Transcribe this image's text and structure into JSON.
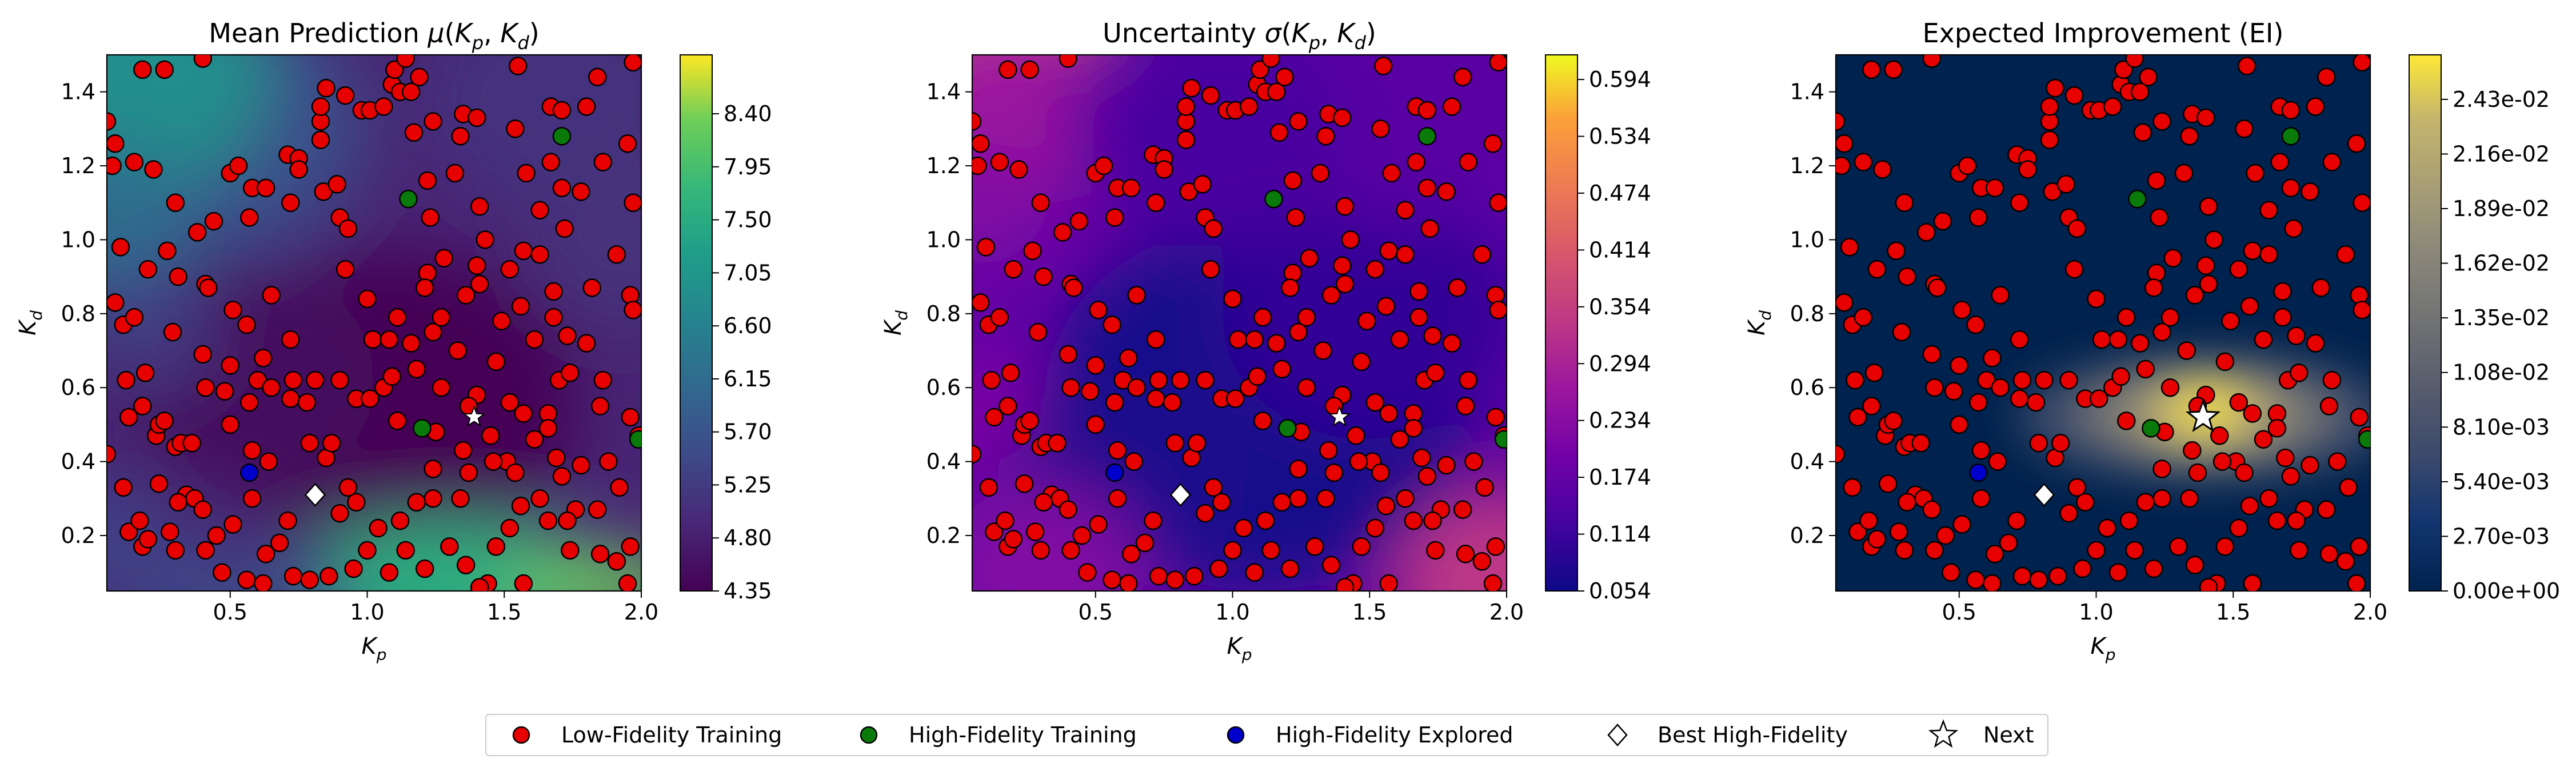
{
  "figure": {
    "legend": [
      {
        "label": "Low-Fidelity Training",
        "marker": "circle",
        "color": "#e60000"
      },
      {
        "label": "High-Fidelity Training",
        "marker": "circle",
        "color": "#0a7a0a"
      },
      {
        "label": "High-Fidelity Explored",
        "marker": "circle",
        "color": "#0000cc"
      },
      {
        "label": "Best High-Fidelity",
        "marker": "diamond",
        "color": "#ffffff"
      },
      {
        "label": "Next",
        "marker": "star",
        "color": "#ffffff"
      }
    ]
  },
  "chart_data": [
    {
      "type": "heatmap",
      "title": "Mean Prediction μ(K_p, K_d)",
      "xlabel": "K_p",
      "ylabel": "K_d",
      "xlim": [
        0.05,
        2.0
      ],
      "ylim": [
        0.05,
        1.5
      ],
      "xticks": [
        "0.5",
        "1.0",
        "1.5",
        "2.0"
      ],
      "yticks": [
        "0.2",
        "0.4",
        "0.6",
        "0.8",
        "1.0",
        "1.2",
        "1.4"
      ],
      "colormap": "viridis",
      "colorbar_ticks": [
        "4.35",
        "4.80",
        "5.25",
        "5.70",
        "6.15",
        "6.60",
        "7.05",
        "7.50",
        "7.95",
        "8.40"
      ],
      "colorbar_range": [
        4.35,
        8.9
      ]
    },
    {
      "type": "heatmap",
      "title": "Uncertainty σ(K_p, K_d)",
      "xlabel": "K_p",
      "ylabel": "K_d",
      "xlim": [
        0.05,
        2.0
      ],
      "ylim": [
        0.05,
        1.5
      ],
      "xticks": [
        "0.5",
        "1.0",
        "1.5",
        "2.0"
      ],
      "yticks": [
        "0.2",
        "0.4",
        "0.6",
        "0.8",
        "1.0",
        "1.2",
        "1.4"
      ],
      "colormap": "plasma",
      "colorbar_ticks": [
        "0.054",
        "0.114",
        "0.174",
        "0.234",
        "0.294",
        "0.354",
        "0.414",
        "0.474",
        "0.534",
        "0.594"
      ],
      "colorbar_range": [
        0.054,
        0.62
      ]
    },
    {
      "type": "heatmap",
      "title": "Expected Improvement (EI)",
      "xlabel": "K_p",
      "ylabel": "K_d",
      "xlim": [
        0.05,
        2.0
      ],
      "ylim": [
        0.05,
        1.5
      ],
      "xticks": [
        "0.5",
        "1.0",
        "1.5",
        "2.0"
      ],
      "yticks": [
        "0.2",
        "0.4",
        "0.6",
        "0.8",
        "1.0",
        "1.2",
        "1.4"
      ],
      "colormap": "cividis",
      "colorbar_ticks": [
        "0.00e+00",
        "2.70e-03",
        "5.40e-03",
        "8.10e-03",
        "1.08e-02",
        "1.35e-02",
        "1.62e-02",
        "1.89e-02",
        "2.16e-02",
        "2.43e-02"
      ],
      "colorbar_range": [
        0.0,
        0.0265
      ]
    }
  ],
  "points": {
    "low_fidelity": [
      [
        0.05,
        1.32
      ],
      [
        0.08,
        1.26
      ],
      [
        0.07,
        1.2
      ],
      [
        0.1,
        0.98
      ],
      [
        0.15,
        1.21
      ],
      [
        0.22,
        1.19
      ],
      [
        0.18,
        1.46
      ],
      [
        0.26,
        1.46
      ],
      [
        0.3,
        1.1
      ],
      [
        0.4,
        1.49
      ],
      [
        0.2,
        0.92
      ],
      [
        0.27,
        0.97
      ],
      [
        0.31,
        0.9
      ],
      [
        0.38,
        1.02
      ],
      [
        0.44,
        1.05
      ],
      [
        0.57,
        1.06
      ],
      [
        0.58,
        1.14
      ],
      [
        0.5,
        1.18
      ],
      [
        0.53,
        1.2
      ],
      [
        0.63,
        1.14
      ],
      [
        0.71,
        1.23
      ],
      [
        0.75,
        1.22
      ],
      [
        0.75,
        1.19
      ],
      [
        0.72,
        1.1
      ],
      [
        0.08,
        0.83
      ],
      [
        0.11,
        0.77
      ],
      [
        0.15,
        0.79
      ],
      [
        0.29,
        0.75
      ],
      [
        0.41,
        0.88
      ],
      [
        0.42,
        0.87
      ],
      [
        0.51,
        0.81
      ],
      [
        0.56,
        0.77
      ],
      [
        0.65,
        0.85
      ],
      [
        0.72,
        0.73
      ],
      [
        0.12,
        0.62
      ],
      [
        0.19,
        0.64
      ],
      [
        0.13,
        0.52
      ],
      [
        0.23,
        0.47
      ],
      [
        0.24,
        0.5
      ],
      [
        0.26,
        0.51
      ],
      [
        0.3,
        0.44
      ],
      [
        0.32,
        0.45
      ],
      [
        0.36,
        0.45
      ],
      [
        0.41,
        0.6
      ],
      [
        0.4,
        0.69
      ],
      [
        0.5,
        0.66
      ],
      [
        0.48,
        0.59
      ],
      [
        0.57,
        0.56
      ],
      [
        0.6,
        0.62
      ],
      [
        0.65,
        0.6
      ],
      [
        0.73,
        0.62
      ],
      [
        0.72,
        0.57
      ],
      [
        0.58,
        0.43
      ],
      [
        0.64,
        0.4
      ],
      [
        0.05,
        0.42
      ],
      [
        0.11,
        0.33
      ],
      [
        0.13,
        0.21
      ],
      [
        0.18,
        0.17
      ],
      [
        0.17,
        0.24
      ],
      [
        0.2,
        0.19
      ],
      [
        0.24,
        0.34
      ],
      [
        0.28,
        0.21
      ],
      [
        0.3,
        0.16
      ],
      [
        0.34,
        0.31
      ],
      [
        0.37,
        0.3
      ],
      [
        0.4,
        0.27
      ],
      [
        0.41,
        0.16
      ],
      [
        0.45,
        0.2
      ],
      [
        0.51,
        0.23
      ],
      [
        0.47,
        0.1
      ],
      [
        0.56,
        0.08
      ],
      [
        0.62,
        0.07
      ],
      [
        0.58,
        0.3
      ],
      [
        0.71,
        0.24
      ],
      [
        0.73,
        0.09
      ],
      [
        0.79,
        0.08
      ],
      [
        0.86,
        0.09
      ],
      [
        0.95,
        0.11
      ],
      [
        0.9,
        0.26
      ],
      [
        0.96,
        0.29
      ],
      [
        0.93,
        0.33
      ],
      [
        0.85,
        0.41
      ],
      [
        0.87,
        0.45
      ],
      [
        0.79,
        0.45
      ],
      [
        0.78,
        0.56
      ],
      [
        0.81,
        0.62
      ],
      [
        0.9,
        0.62
      ],
      [
        0.96,
        0.57
      ],
      [
        1.01,
        0.57
      ],
      [
        1.06,
        0.6
      ],
      [
        1.09,
        0.63
      ],
      [
        1.02,
        0.73
      ],
      [
        1.0,
        0.84
      ],
      [
        0.92,
        0.92
      ],
      [
        0.9,
        1.06
      ],
      [
        0.93,
        1.03
      ],
      [
        0.84,
        1.13
      ],
      [
        0.89,
        1.15
      ],
      [
        0.83,
        1.27
      ],
      [
        0.83,
        1.32
      ],
      [
        0.83,
        1.36
      ],
      [
        0.85,
        1.41
      ],
      [
        0.92,
        1.39
      ],
      [
        0.98,
        1.35
      ],
      [
        1.01,
        1.35
      ],
      [
        1.06,
        1.36
      ],
      [
        1.09,
        1.42
      ],
      [
        1.12,
        1.4
      ],
      [
        1.1,
        1.46
      ],
      [
        1.14,
        1.49
      ],
      [
        1.16,
        1.4
      ],
      [
        1.19,
        1.44
      ],
      [
        1.17,
        1.29
      ],
      [
        1.24,
        1.32
      ],
      [
        1.35,
        1.34
      ],
      [
        1.4,
        1.33
      ],
      [
        1.22,
        1.16
      ],
      [
        1.34,
        1.28
      ],
      [
        1.32,
        1.18
      ],
      [
        1.41,
        1.09
      ],
      [
        1.23,
        1.06
      ],
      [
        1.22,
        0.91
      ],
      [
        1.28,
        0.95
      ],
      [
        1.4,
        0.93
      ],
      [
        1.36,
        0.85
      ],
      [
        1.41,
        0.88
      ],
      [
        1.43,
        1.0
      ],
      [
        1.52,
        0.92
      ],
      [
        1.57,
        0.97
      ],
      [
        1.63,
        0.96
      ],
      [
        1.63,
        1.08
      ],
      [
        1.72,
        1.03
      ],
      [
        1.58,
        1.18
      ],
      [
        1.67,
        1.21
      ],
      [
        1.71,
        1.14
      ],
      [
        1.78,
        1.13
      ],
      [
        1.54,
        1.3
      ],
      [
        1.55,
        1.47
      ],
      [
        1.67,
        1.36
      ],
      [
        1.71,
        1.35
      ],
      [
        1.8,
        1.36
      ],
      [
        1.84,
        1.44
      ],
      [
        1.97,
        1.48
      ],
      [
        1.86,
        1.21
      ],
      [
        1.95,
        1.26
      ],
      [
        1.97,
        1.1
      ],
      [
        1.91,
        0.96
      ],
      [
        1.82,
        0.87
      ],
      [
        1.96,
        0.85
      ],
      [
        1.97,
        0.81
      ],
      [
        1.8,
        0.72
      ],
      [
        1.73,
        0.74
      ],
      [
        1.68,
        0.79
      ],
      [
        1.68,
        0.86
      ],
      [
        1.61,
        0.73
      ],
      [
        1.56,
        0.82
      ],
      [
        1.49,
        0.78
      ],
      [
        1.47,
        0.67
      ],
      [
        1.52,
        0.56
      ],
      [
        1.4,
        0.58
      ],
      [
        1.37,
        0.55
      ],
      [
        1.27,
        0.6
      ],
      [
        1.18,
        0.65
      ],
      [
        1.11,
        0.79
      ],
      [
        1.08,
        0.73
      ],
      [
        1.16,
        0.72
      ],
      [
        1.24,
        0.75
      ],
      [
        1.21,
        0.87
      ],
      [
        1.27,
        0.79
      ],
      [
        1.33,
        0.7
      ],
      [
        1.11,
        0.51
      ],
      [
        1.25,
        0.48
      ],
      [
        1.24,
        0.38
      ],
      [
        1.35,
        0.43
      ],
      [
        1.45,
        0.47
      ],
      [
        1.51,
        0.4
      ],
      [
        1.61,
        0.46
      ],
      [
        1.57,
        0.53
      ],
      [
        1.66,
        0.53
      ],
      [
        1.66,
        0.49
      ],
      [
        1.69,
        0.41
      ],
      [
        1.71,
        0.36
      ],
      [
        1.78,
        0.39
      ],
      [
        1.88,
        0.4
      ],
      [
        1.85,
        0.55
      ],
      [
        1.86,
        0.62
      ],
      [
        1.7,
        0.62
      ],
      [
        1.74,
        0.64
      ],
      [
        1.96,
        0.52
      ],
      [
        1.99,
        0.47
      ],
      [
        1.92,
        0.33
      ],
      [
        1.84,
        0.27
      ],
      [
        1.76,
        0.27
      ],
      [
        1.73,
        0.24
      ],
      [
        1.66,
        0.24
      ],
      [
        1.63,
        0.3
      ],
      [
        1.56,
        0.28
      ],
      [
        1.54,
        0.37
      ],
      [
        1.46,
        0.4
      ],
      [
        1.37,
        0.37
      ],
      [
        1.34,
        0.3
      ],
      [
        1.24,
        0.3
      ],
      [
        1.18,
        0.29
      ],
      [
        1.12,
        0.24
      ],
      [
        1.04,
        0.22
      ],
      [
        1.14,
        0.16
      ],
      [
        1.21,
        0.11
      ],
      [
        1.3,
        0.17
      ],
      [
        1.36,
        0.12
      ],
      [
        1.47,
        0.17
      ],
      [
        1.52,
        0.22
      ],
      [
        1.57,
        0.07
      ],
      [
        1.74,
        0.16
      ],
      [
        1.85,
        0.15
      ],
      [
        1.96,
        0.17
      ],
      [
        1.91,
        0.13
      ],
      [
        1.95,
        0.07
      ],
      [
        1.44,
        0.07
      ],
      [
        1.41,
        0.06
      ],
      [
        1.0,
        0.16
      ],
      [
        1.08,
        0.1
      ],
      [
        0.63,
        0.15
      ],
      [
        0.68,
        0.18
      ],
      [
        0.31,
        0.29
      ],
      [
        0.5,
        0.5
      ],
      [
        0.18,
        0.55
      ],
      [
        0.62,
        0.68
      ]
    ],
    "high_fidelity_training": [
      [
        1.15,
        1.11
      ],
      [
        1.71,
        1.28
      ],
      [
        1.2,
        0.49
      ],
      [
        1.99,
        0.46
      ]
    ],
    "high_fidelity_explored": [
      [
        0.57,
        0.37
      ]
    ],
    "best_high_fidelity": [
      0.81,
      0.31
    ],
    "next": [
      1.39,
      0.52
    ]
  }
}
